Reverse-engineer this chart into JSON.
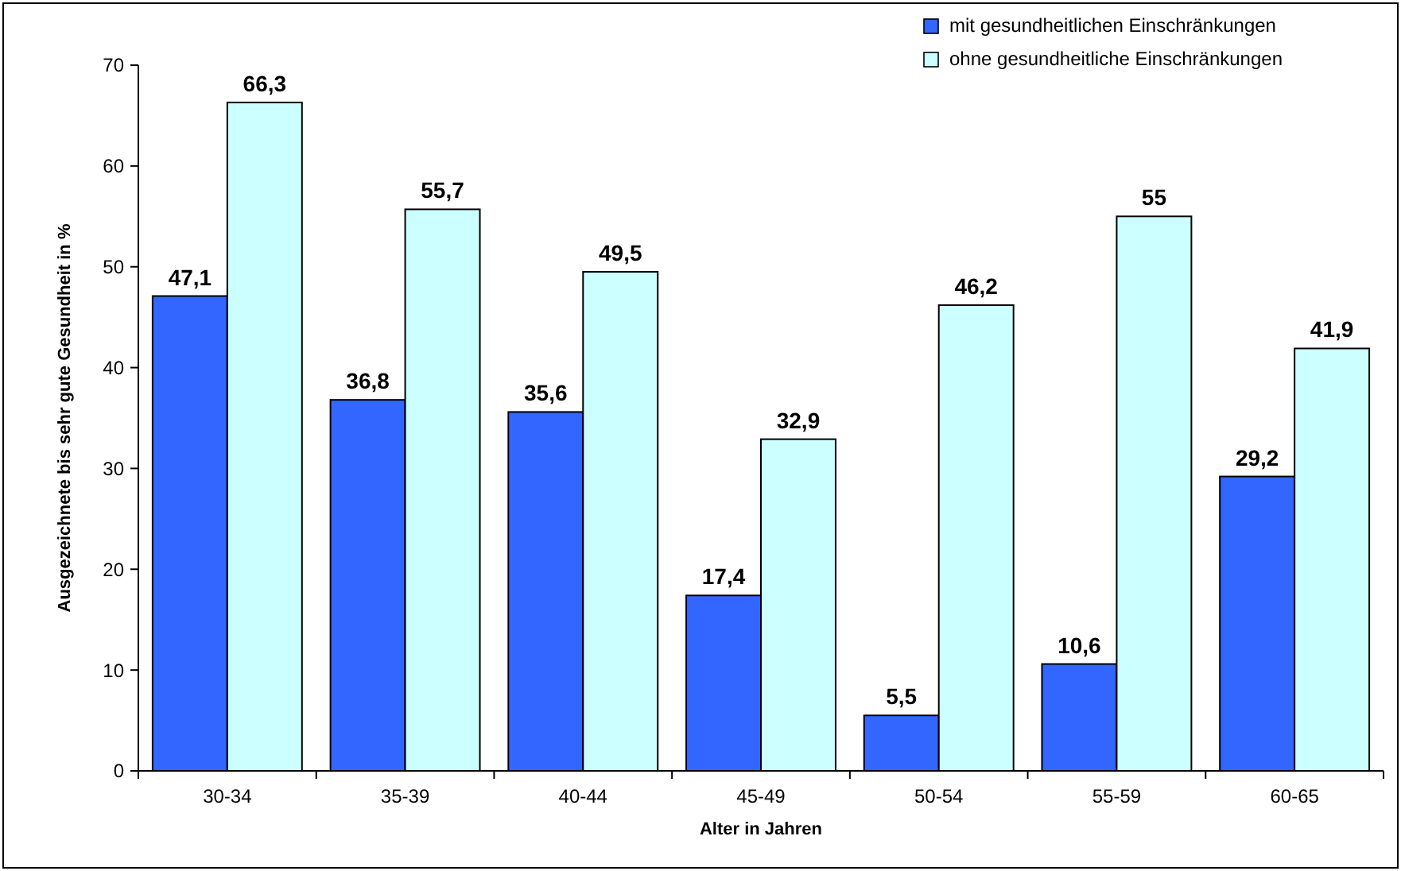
{
  "chart_data": {
    "type": "bar",
    "xlabel": "Alter in Jahren",
    "ylabel": "Ausgezeichnete bis sehr gute Gesundheit in %",
    "categories": [
      "30-34",
      "35-39",
      "40-44",
      "45-49",
      "50-54",
      "55-59",
      "60-65"
    ],
    "series": [
      {
        "name": "mit gesundheitlichen Einschränkungen",
        "color": "#3366ff",
        "values": [
          47.1,
          36.8,
          35.6,
          17.4,
          5.5,
          10.6,
          29.2
        ],
        "value_labels": [
          "47,1",
          "36,8",
          "35,6",
          "17,4",
          "5,5",
          "10,6",
          "29,2"
        ]
      },
      {
        "name": "ohne gesundheitliche Einschränkungen",
        "color": "#ccffff",
        "values": [
          66.3,
          55.7,
          49.5,
          32.9,
          46.2,
          55,
          41.9
        ],
        "value_labels": [
          "66,3",
          "55,7",
          "49,5",
          "32,9",
          "46,2",
          "55",
          "41,9"
        ]
      }
    ],
    "ylim": [
      0,
      70
    ],
    "yticks": [
      0,
      10,
      20,
      30,
      40,
      50,
      60,
      70
    ],
    "grid": false,
    "legend": "top right"
  }
}
